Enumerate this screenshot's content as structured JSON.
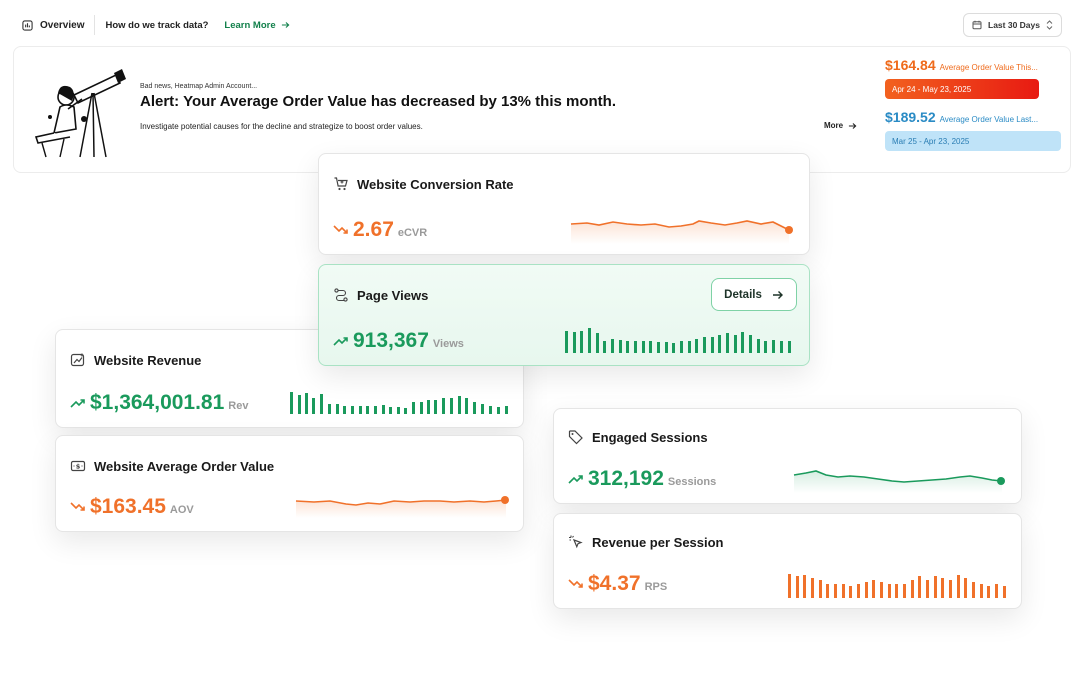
{
  "nav": {
    "overview_label": "Overview",
    "track_label": "How do we track data?",
    "learn_more_label": "Learn More",
    "date_range_label": "Last 30 Days"
  },
  "alert": {
    "small_text": "Bad news, Heatmap Admin Account...",
    "title": "Alert: Your Average Order Value has decreased by 13% this month.",
    "description": "Investigate potential causes for the decline and strategize to boost order values.",
    "more_label": "More"
  },
  "comparison": {
    "current": {
      "value": "$164.84",
      "label": "Average Order Value This...",
      "range": "Apr 24 - May 23, 2025",
      "color": "#ef6a1b"
    },
    "previous": {
      "value": "$189.52",
      "label": "Average Order Value Last...",
      "range": "Mar 25 - Apr 23, 2025",
      "color": "#2a8bc5"
    }
  },
  "cards": {
    "conversion": {
      "title": "Website Conversion Rate",
      "value": "2.67",
      "unit": "eCVR",
      "trend": "down",
      "icon": "cart-icon",
      "chart": "line"
    },
    "pageviews": {
      "title": "Page Views",
      "value": "913,367",
      "unit": "Views",
      "trend": "up",
      "icon": "route-icon",
      "details_label": "Details",
      "chart": "bar"
    },
    "revenue": {
      "title": "Website Revenue",
      "value": "$1,364,001.81",
      "unit": "Rev",
      "trend": "up",
      "icon": "chart-icon",
      "chart": "bar"
    },
    "aov": {
      "title": "Website Average Order Value",
      "value": "$163.45",
      "unit": "AOV",
      "trend": "down",
      "icon": "dollar-bill-icon",
      "chart": "line"
    },
    "sessions": {
      "title": "Engaged Sessions",
      "value": "312,192",
      "unit": "Sessions",
      "trend": "up",
      "icon": "tag-icon",
      "chart": "line"
    },
    "rps": {
      "title": "Revenue per Session",
      "value": "$4.37",
      "unit": "RPS",
      "trend": "down",
      "icon": "cursor-icon",
      "chart": "bar"
    }
  },
  "colors": {
    "green": "#1a9a5c",
    "orange": "#f0712a",
    "blue": "#2a8bc5"
  }
}
